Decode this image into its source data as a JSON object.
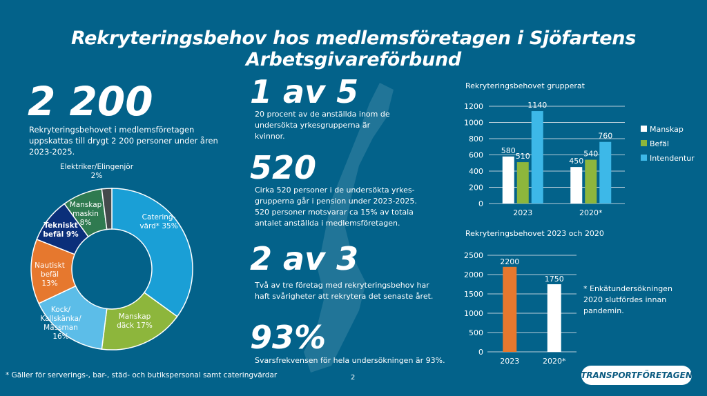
{
  "title": "Rekryteringsbehov hos medlemsföretagen i Sjöfartens Arbetsgivareförbund",
  "stat_main": {
    "value": "2 200",
    "text": "Rekryteringsbehovet i medlemsföretagen uppskattas till drygt 2 200 personer under åren 2023-2025."
  },
  "stats": [
    {
      "value": "1 av 5",
      "text": "20 procent av de anställda inom de undersökta yrkesgrupperna är kvinnor."
    },
    {
      "value": "520",
      "text": "Cirka 520 personer i de undersökta yrkes-grupperna går i pension under 2023-2025. 520 personer motsvarar ca 15% av totala antalet anställda i medlemsföretagen."
    },
    {
      "value": "2 av 3",
      "text": "Två av tre företag med rekryteringsbehov har haft svårigheter att rekrytera det senaste året."
    },
    {
      "value": "93%",
      "text": "Svarsfrekvensen för hela undersökningen är 93%."
    }
  ],
  "footnote": "* Gäller för serverings-, bar-, städ- och butikspersonal samt cateringvärdar",
  "page_number": "2",
  "note_2020": "* Enkätundersökningen 2020 slutfördes innan pandemin.",
  "logo": "TRANSPORTFÖRETAGEN",
  "chart_data": [
    {
      "type": "pie",
      "donut": true,
      "slices": [
        {
          "label": "Catering-värd* 35%",
          "value": 35,
          "color": "#1a9fd6"
        },
        {
          "label": "Manskap däck 17%",
          "value": 17,
          "color": "#8db63c"
        },
        {
          "label": "Kock/ Kallskänka/ Mässman 16%",
          "value": 16,
          "color": "#5cbde8"
        },
        {
          "label": "Nautiskt befäl 13%",
          "value": 13,
          "color": "#e6782e"
        },
        {
          "label": "Tekniskt befäl 9%",
          "value": 9,
          "color": "#0b2f7a"
        },
        {
          "label": "Manskap maskin 8%",
          "value": 8,
          "color": "#2f7a50"
        },
        {
          "label": "Elektriker/Elingenjör 2%",
          "value": 2,
          "color": "#444a4c"
        }
      ]
    },
    {
      "type": "bar",
      "title": "Rekryteringsbehovet grupperat",
      "categories": [
        "2023",
        "2020*"
      ],
      "series": [
        {
          "name": "Manskap",
          "values": [
            580,
            450
          ],
          "color": "#ffffff"
        },
        {
          "name": "Befäl",
          "values": [
            510,
            540
          ],
          "color": "#8db63c"
        },
        {
          "name": "Intendentur",
          "values": [
            1140,
            760
          ],
          "color": "#3db8e8"
        }
      ],
      "yticks": [
        0,
        200,
        400,
        600,
        800,
        1000,
        1200
      ],
      "ylim": [
        0,
        1200
      ],
      "grid": true,
      "legend": "right"
    },
    {
      "type": "bar",
      "title": "Rekryteringsbehovet 2023 och 2020",
      "categories": [
        "2023",
        "2020*"
      ],
      "values": [
        2200,
        1750
      ],
      "colors": [
        "#e6782e",
        "#ffffff"
      ],
      "yticks": [
        0,
        500,
        1000,
        1500,
        2000,
        2500
      ],
      "ylim": [
        0,
        2500
      ],
      "grid": true
    }
  ]
}
